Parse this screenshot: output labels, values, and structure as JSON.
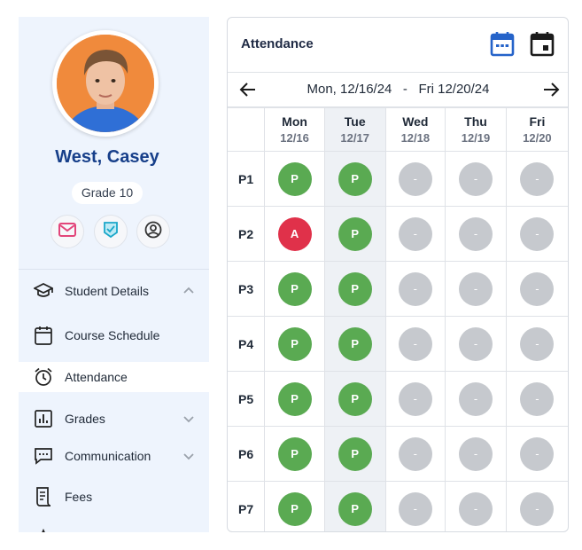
{
  "student": {
    "name": "West, Casey",
    "grade": "Grade 10"
  },
  "quick_actions": [
    {
      "icon": "mail-icon"
    },
    {
      "icon": "verified-badge-icon"
    },
    {
      "icon": "account-circle-icon"
    }
  ],
  "nav": [
    {
      "label": "Student Details",
      "icon": "graduation-cap-icon",
      "chevron": "up"
    },
    {
      "label": "Course Schedule",
      "icon": "calendar-icon",
      "chevron": null
    },
    {
      "label": "Attendance",
      "icon": "alarm-clock-icon",
      "chevron": null,
      "active": true
    },
    {
      "label": "Grades",
      "icon": "bar-chart-icon",
      "chevron": "down"
    },
    {
      "label": "Communication",
      "icon": "chat-icon",
      "chevron": "down"
    },
    {
      "label": "Fees",
      "icon": "receipt-icon",
      "chevron": null
    }
  ],
  "attendance": {
    "title": "Attendance",
    "range_start": "Mon, 12/16/24",
    "range_sep": "-",
    "range_end": "Fri 12/20/24",
    "days": [
      {
        "name": "Mon",
        "date": "12/16"
      },
      {
        "name": "Tue",
        "date": "12/17",
        "today": true
      },
      {
        "name": "Wed",
        "date": "12/18"
      },
      {
        "name": "Thu",
        "date": "12/19"
      },
      {
        "name": "Fri",
        "date": "12/20"
      }
    ],
    "periods": [
      {
        "label": "P1",
        "marks": [
          "P",
          "P",
          "-",
          "-",
          "-"
        ]
      },
      {
        "label": "P2",
        "marks": [
          "A",
          "P",
          "-",
          "-",
          "-"
        ]
      },
      {
        "label": "P3",
        "marks": [
          "P",
          "P",
          "-",
          "-",
          "-"
        ]
      },
      {
        "label": "P4",
        "marks": [
          "P",
          "P",
          "-",
          "-",
          "-"
        ]
      },
      {
        "label": "P5",
        "marks": [
          "P",
          "P",
          "-",
          "-",
          "-"
        ]
      },
      {
        "label": "P6",
        "marks": [
          "P",
          "P",
          "-",
          "-",
          "-"
        ]
      },
      {
        "label": "P7",
        "marks": [
          "P",
          "P",
          "-",
          "-",
          "-"
        ]
      }
    ]
  },
  "colors": {
    "present": "#5aaa52",
    "absent": "#e0314a",
    "none": "#c6c9ce",
    "accent": "#173f8a",
    "calendar_blue": "#2563c9"
  }
}
